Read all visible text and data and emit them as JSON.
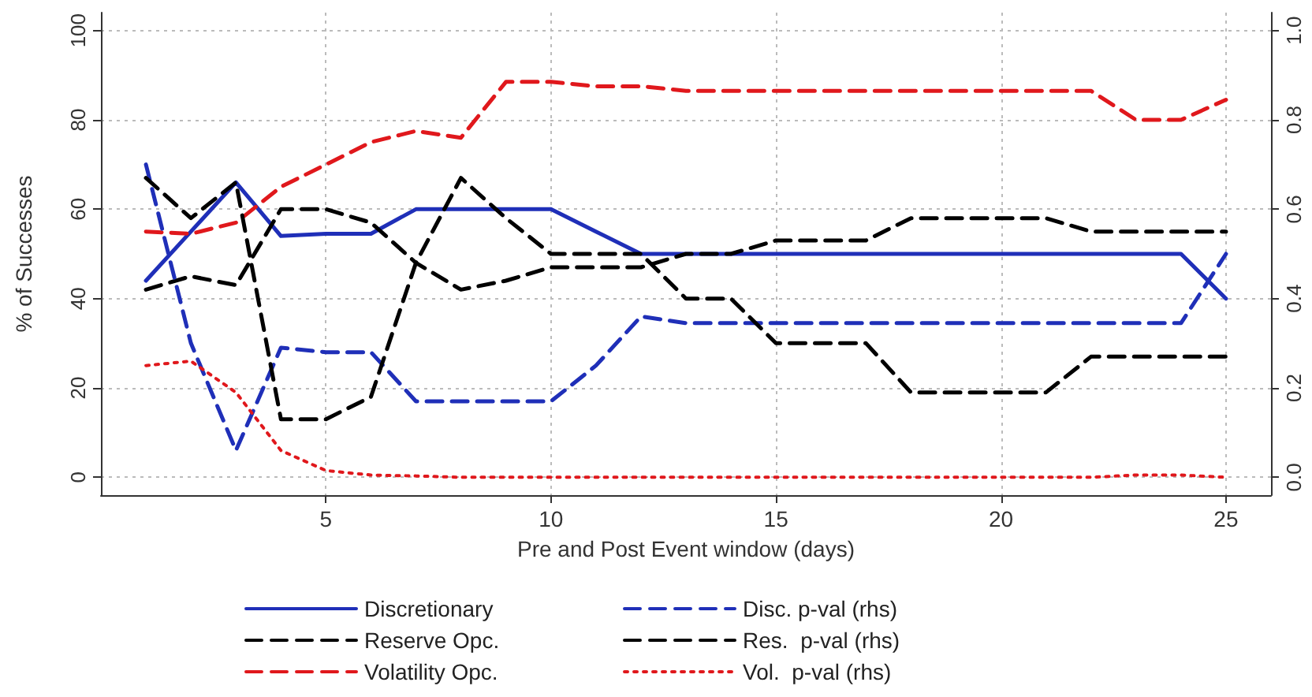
{
  "chart_data": {
    "type": "line",
    "xlabel": "Pre and Post Event window (days)",
    "ylabel": "% of Successes",
    "x": [
      1,
      2,
      3,
      4,
      5,
      6,
      7,
      8,
      9,
      10,
      11,
      12,
      13,
      14,
      15,
      16,
      17,
      18,
      19,
      20,
      21,
      22,
      23,
      24,
      25
    ],
    "xlim": [
      0,
      26
    ],
    "xticks": [
      5,
      10,
      15,
      20,
      25
    ],
    "ylim": [
      -4,
      104
    ],
    "yticks": [
      0,
      20,
      40,
      60,
      80,
      100
    ],
    "y2lim": [
      -0.04,
      1.04
    ],
    "y2ticks": [
      {
        "value": 0,
        "label": "0.0"
      },
      {
        "value": 0.2,
        "label": "0.2"
      },
      {
        "value": 0.4,
        "label": "0.4"
      },
      {
        "value": 0.6,
        "label": "0.6"
      },
      {
        "value": 0.8,
        "label": "0.8"
      },
      {
        "value": 1,
        "label": "1.0"
      }
    ],
    "grid": true,
    "legend": "bottom",
    "marker": "none",
    "series": [
      {
        "name": "Discretionary",
        "color": "#1f2fb8",
        "line_style": "solid",
        "values": [
          44,
          55,
          66,
          54,
          54.5,
          54.5,
          60,
          60,
          60,
          60,
          55,
          50,
          50,
          50,
          50,
          50,
          50,
          50,
          50,
          50,
          50,
          50,
          50,
          50,
          40
        ]
      },
      {
        "name": "Reserve Opc.",
        "color": "#000000",
        "line_style": "dashed",
        "values": [
          42,
          45,
          43,
          60,
          60,
          57,
          48,
          42,
          44,
          47,
          47,
          47,
          50,
          50,
          53,
          53,
          53,
          58,
          58,
          58,
          58,
          55,
          55,
          55,
          55
        ]
      },
      {
        "name": "Volatility Opc.",
        "color": "#e0181c",
        "line_style": "dashed",
        "values": [
          55,
          54.5,
          57,
          65,
          70,
          75,
          77.5,
          76,
          88.5,
          88.5,
          87.5,
          87.5,
          86.5,
          86.5,
          86.5,
          86.5,
          86.5,
          86.5,
          86.5,
          86.5,
          86.5,
          86.5,
          80,
          80,
          84.5
        ]
      },
      {
        "name": "Disc. p-val (rhs)",
        "color": "#1f2fb8",
        "line_style": "dashed",
        "axis": "y2",
        "values": [
          0.7,
          0.3,
          0.06,
          0.29,
          0.28,
          0.28,
          0.17,
          0.17,
          0.17,
          0.17,
          0.25,
          0.36,
          0.345,
          0.345,
          0.345,
          0.345,
          0.345,
          0.345,
          0.345,
          0.345,
          0.345,
          0.345,
          0.345,
          0.345,
          0.5
        ]
      },
      {
        "name": "Res.  p-val (rhs)",
        "color": "#000000",
        "line_style": "dashed",
        "axis": "y2",
        "values": [
          0.67,
          0.58,
          0.66,
          0.13,
          0.13,
          0.18,
          0.48,
          0.67,
          0.58,
          0.5,
          0.5,
          0.5,
          0.4,
          0.4,
          0.3,
          0.3,
          0.3,
          0.19,
          0.19,
          0.19,
          0.19,
          0.27,
          0.27,
          0.27,
          0.27
        ]
      },
      {
        "name": "Vol.  p-val (rhs)",
        "color": "#e0181c",
        "line_style": "dotted",
        "axis": "y2",
        "values": [
          0.25,
          0.26,
          0.19,
          0.06,
          0.015,
          0.005,
          0.003,
          0,
          0,
          0,
          0,
          0,
          0,
          0,
          0,
          0,
          0,
          0,
          0,
          0,
          0,
          0,
          0.005,
          0.005,
          0
        ]
      }
    ]
  }
}
